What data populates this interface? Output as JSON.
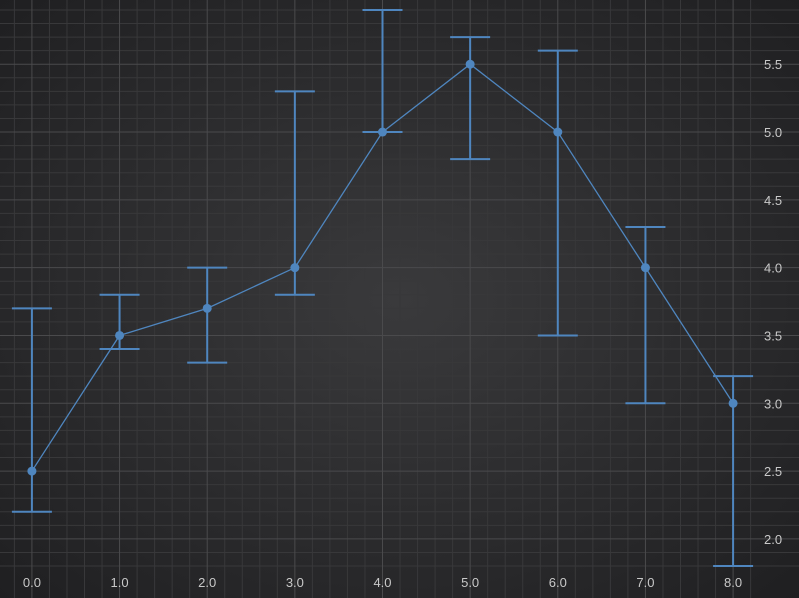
{
  "chart_data": {
    "type": "line",
    "error_bars": true,
    "x": [
      0,
      1,
      2,
      3,
      4,
      5,
      6,
      7,
      8
    ],
    "series": [
      {
        "values": [
          2.5,
          3.5,
          3.7,
          4.0,
          5.0,
          5.5,
          5.0,
          4.0,
          3.0
        ],
        "error_low": [
          2.2,
          3.4,
          3.3,
          3.8,
          5.0,
          4.8,
          3.5,
          3.0,
          1.8
        ],
        "error_high": [
          3.7,
          3.8,
          4.0,
          5.3,
          5.9,
          5.7,
          5.6,
          4.3,
          3.2
        ],
        "color": "#4f86bf"
      }
    ],
    "x_ticks": [
      "0.0",
      "1.0",
      "2.0",
      "3.0",
      "4.0",
      "5.0",
      "6.0",
      "7.0",
      "8.0"
    ],
    "y_ticks": [
      "2.0",
      "2.5",
      "3.0",
      "3.5",
      "4.0",
      "4.5",
      "5.0",
      "5.5"
    ],
    "xlim": [
      -0.25,
      8.25
    ],
    "ylim": [
      1.8,
      5.9
    ],
    "y_axis_side": "right",
    "grid": true,
    "minor_grid": true,
    "background_color": "#2e2e30",
    "grid_color": "#4a4a4c",
    "minor_grid_color": "#38383a",
    "tick_label_color": "#c9c9c9"
  }
}
